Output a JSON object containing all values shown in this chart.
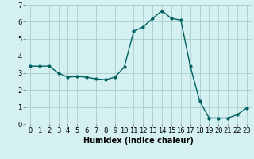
{
  "x": [
    0,
    1,
    2,
    3,
    4,
    5,
    6,
    7,
    8,
    9,
    10,
    11,
    12,
    13,
    14,
    15,
    16,
    17,
    18,
    19,
    20,
    21,
    22,
    23
  ],
  "y": [
    3.4,
    3.4,
    3.4,
    3.0,
    2.75,
    2.8,
    2.75,
    2.65,
    2.6,
    2.75,
    3.35,
    5.45,
    5.7,
    6.2,
    6.65,
    6.2,
    6.1,
    3.4,
    1.35,
    0.35,
    0.35,
    0.35,
    0.55,
    0.95
  ],
  "line_color": "#006060",
  "marker": "o",
  "marker_size": 2.0,
  "line_width": 1.0,
  "xlabel": "Humidex (Indice chaleur)",
  "xlim": [
    -0.5,
    23.5
  ],
  "ylim": [
    0,
    7
  ],
  "yticks": [
    0,
    1,
    2,
    3,
    4,
    5,
    6,
    7
  ],
  "xticks": [
    0,
    1,
    2,
    3,
    4,
    5,
    6,
    7,
    8,
    9,
    10,
    11,
    12,
    13,
    14,
    15,
    16,
    17,
    18,
    19,
    20,
    21,
    22,
    23
  ],
  "bg_color": "#d4f0f0",
  "grid_color": "#aacccc",
  "xlabel_fontsize": 7,
  "tick_fontsize": 6
}
